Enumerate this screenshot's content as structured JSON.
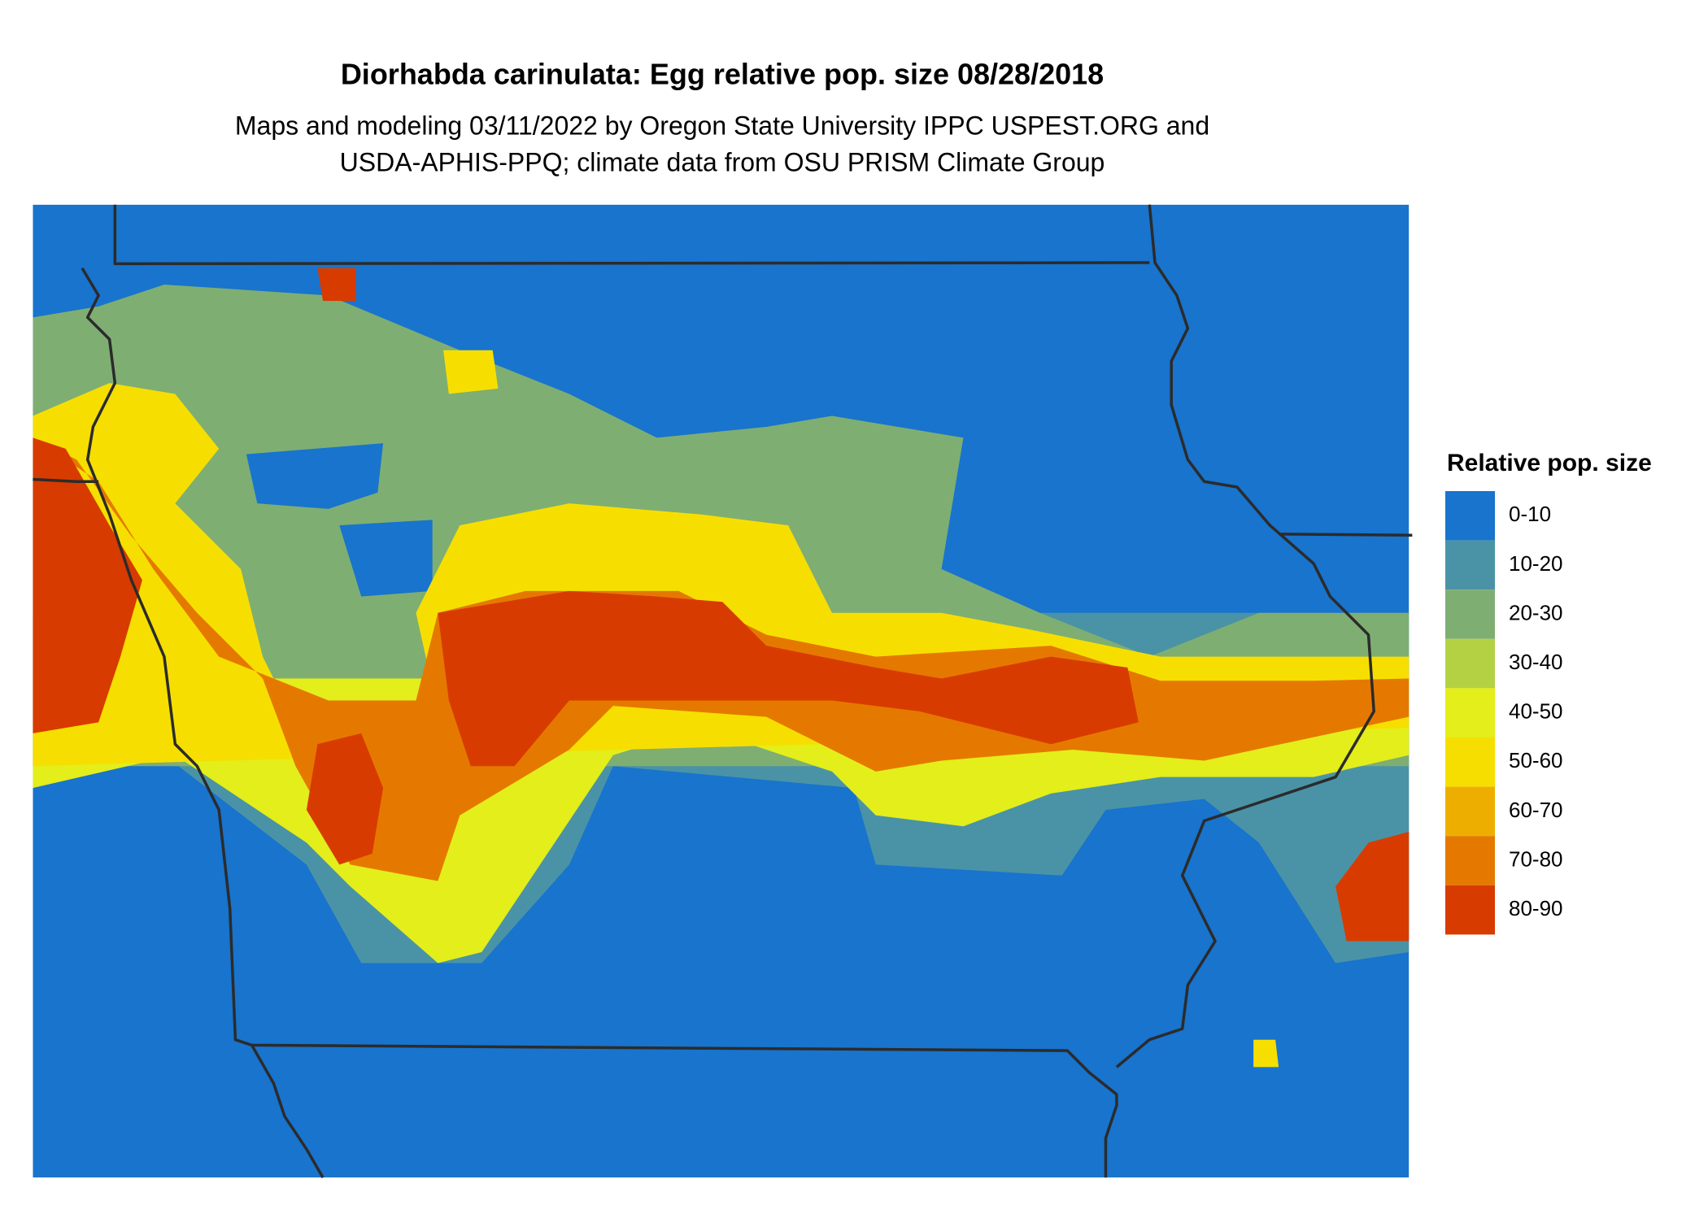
{
  "title": "Diorhabda carinulata: Egg relative pop. size 08/28/2018",
  "subtitle": [
    "Maps and modeling 03/11/2022 by Oregon State University IPPC USPEST.ORG and",
    "USDA-APHIS-PPQ; climate data from OSU PRISM Climate Group"
  ],
  "legend": {
    "title": "Relative pop. size",
    "items": [
      {
        "label": "0-10",
        "color": "#1874cd"
      },
      {
        "label": "10-20",
        "color": "#4a93a6"
      },
      {
        "label": "20-30",
        "color": "#7fae73"
      },
      {
        "label": "30-40",
        "color": "#b3d143"
      },
      {
        "label": "40-50",
        "color": "#e3ee1a"
      },
      {
        "label": "50-60",
        "color": "#f6df00"
      },
      {
        "label": "60-70",
        "color": "#eeae00"
      },
      {
        "label": "70-80",
        "color": "#e57900"
      },
      {
        "label": "80-90",
        "color": "#d83b00"
      }
    ]
  }
}
